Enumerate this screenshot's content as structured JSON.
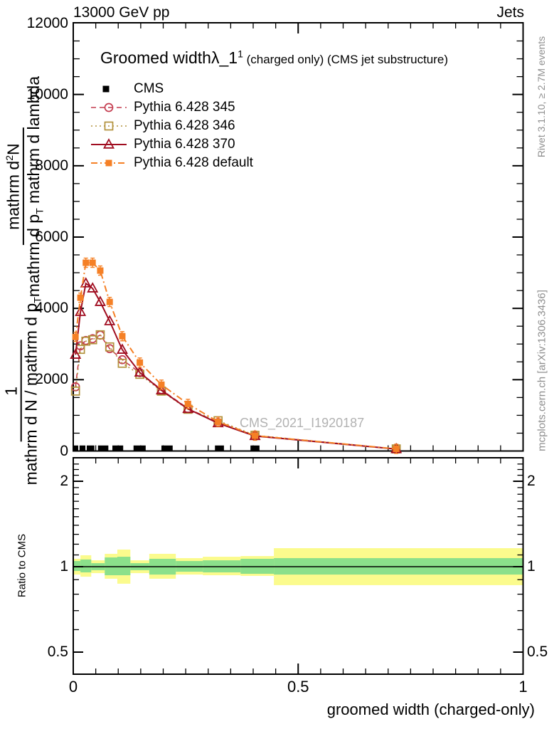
{
  "header": {
    "left": "13000 GeV pp",
    "right": "Jets"
  },
  "title": {
    "main": "Groomed width",
    "obs": "λ_1",
    "sup": "1",
    "suffix": "(charged only) (CMS jet substructure)"
  },
  "watermark": "CMS_2021_I1920187",
  "side_notes": {
    "rivet": "Rivet 3.1.10, ≥ 2.7M events",
    "mcplots": "mcplots.cern.ch [arXiv:1306.3436]"
  },
  "axis_labels": {
    "x": "groomed width (charged-only)",
    "ratio_y": "Ratio to CMS",
    "y_upper_num": "mathrm d^2N",
    "y_upper_den": "mathrm d p_T mathrm d lambda",
    "y_lower_num": "1",
    "y_lower_den": "mathrm d N / mathrm d p_T"
  },
  "chart_data": {
    "type": "line",
    "title": "Groomed width λ_1^1 (charged only) (CMS jet substructure)",
    "xlabel": "groomed width (charged-only)",
    "xlim": [
      0,
      1
    ],
    "ylim": [
      0,
      12030
    ],
    "xticks": [
      0,
      0.5,
      1
    ],
    "xtick_labels": [
      "0",
      "0.5",
      "1"
    ],
    "x_minor_step": 0.05,
    "yticks": [
      0,
      2000,
      4000,
      6000,
      8000,
      10000,
      12000
    ],
    "ytick_labels": [
      "0",
      "2000",
      "4000",
      "6000",
      "8000",
      "10000",
      "12000"
    ],
    "y_minor_step": 500,
    "grid": false,
    "legend_position": "top-left",
    "x": [
      0.005,
      0.016,
      0.028,
      0.043,
      0.06,
      0.081,
      0.109,
      0.148,
      0.196,
      0.255,
      0.322,
      0.404,
      0.718
    ],
    "series": [
      {
        "name": "Pythia 6.428 345",
        "color": "#c43b4e",
        "dash": [
          7,
          5
        ],
        "width": 1.6,
        "marker": "circle-open",
        "values": [
          1800,
          2950,
          3100,
          3150,
          3250,
          2870,
          2560,
          2200,
          1720,
          1190,
          800,
          430,
          55
        ]
      },
      {
        "name": "Pythia 6.428 346",
        "color": "#b2923c",
        "dash": [
          2,
          4
        ],
        "width": 1.6,
        "marker": "square-open",
        "values": [
          1680,
          2850,
          3080,
          3120,
          3260,
          2920,
          2460,
          2150,
          1680,
          1170,
          850,
          440,
          58
        ]
      },
      {
        "name": "Pythia 6.428 370",
        "color": "#a00d20",
        "dash": [],
        "width": 2,
        "marker": "triangle-open",
        "values": [
          2700,
          3900,
          4700,
          4560,
          4180,
          3640,
          2840,
          2200,
          1700,
          1180,
          780,
          420,
          55
        ]
      },
      {
        "name": "Pythia 6.428 default",
        "color": "#f58026",
        "dash": [
          9,
          4,
          2,
          4
        ],
        "width": 2,
        "marker": "square-filled",
        "yerr": 130,
        "values": [
          3200,
          4300,
          5280,
          5280,
          5060,
          4180,
          3220,
          2480,
          1860,
          1320,
          820,
          430,
          60
        ]
      }
    ],
    "cms": {
      "name": "CMS",
      "color": "#000000",
      "marker": "square-filled",
      "bins": [
        [
          0.0,
          0.011
        ],
        [
          0.014,
          0.027
        ],
        [
          0.03,
          0.047
        ],
        [
          0.055,
          0.078
        ],
        [
          0.087,
          0.111
        ],
        [
          0.134,
          0.161
        ],
        [
          0.196,
          0.221
        ],
        [
          0.315,
          0.335
        ],
        [
          0.394,
          0.414
        ]
      ],
      "y_center": 70,
      "y_half": 85
    },
    "ratio": {
      "ylabel": "Ratio to CMS",
      "scale": "log2",
      "ylim": [
        0.418,
        2.42
      ],
      "yticks": [
        0.5,
        1,
        2
      ],
      "ytick_labels": [
        "0.5",
        "1",
        "2"
      ],
      "ref_line": 1,
      "band_colors": {
        "outer": "#fbfb8d",
        "inner": "#8be08b"
      },
      "bands": [
        {
          "x0": 0.0,
          "x1": 0.016,
          "y_hi": 1.066,
          "y_lo": 0.938,
          "g_hi": 1.047,
          "g_lo": 0.966
        },
        {
          "x0": 0.016,
          "x1": 0.04,
          "y_hi": 1.097,
          "y_lo": 0.922,
          "g_hi": 1.06,
          "g_lo": 0.955
        },
        {
          "x0": 0.04,
          "x1": 0.07,
          "y_hi": 1.053,
          "y_lo": 0.949,
          "g_hi": 1.029,
          "g_lo": 0.972
        },
        {
          "x0": 0.07,
          "x1": 0.098,
          "y_hi": 1.11,
          "y_lo": 0.907,
          "g_hi": 1.078,
          "g_lo": 0.933
        },
        {
          "x0": 0.098,
          "x1": 0.127,
          "y_hi": 1.149,
          "y_lo": 0.871,
          "g_hi": 1.084,
          "g_lo": 0.933
        },
        {
          "x0": 0.127,
          "x1": 0.169,
          "y_hi": 1.053,
          "y_lo": 0.949,
          "g_hi": 1.029,
          "g_lo": 0.972
        },
        {
          "x0": 0.169,
          "x1": 0.228,
          "y_hi": 1.11,
          "y_lo": 0.907,
          "g_hi": 1.066,
          "g_lo": 0.938
        },
        {
          "x0": 0.228,
          "x1": 0.288,
          "y_hi": 1.072,
          "y_lo": 0.938,
          "g_hi": 1.047,
          "g_lo": 0.96
        },
        {
          "x0": 0.288,
          "x1": 0.372,
          "y_hi": 1.084,
          "y_lo": 0.933,
          "g_hi": 1.053,
          "g_lo": 0.955
        },
        {
          "x0": 0.372,
          "x1": 0.446,
          "y_hi": 1.09,
          "y_lo": 0.928,
          "g_hi": 1.066,
          "g_lo": 0.944
        },
        {
          "x0": 0.446,
          "x1": 1.0,
          "y_hi": 1.162,
          "y_lo": 0.861,
          "g_hi": 1.072,
          "g_lo": 0.938
        }
      ]
    }
  }
}
